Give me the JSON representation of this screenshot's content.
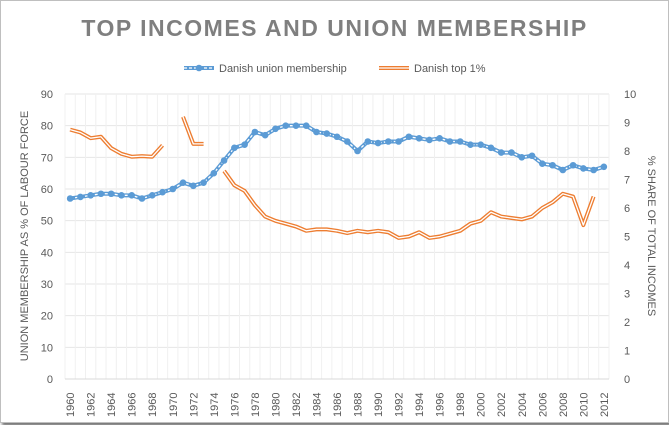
{
  "chart_data": {
    "type": "line",
    "title": "TOP INCOMES AND UNION MEMBERSHIP",
    "ylabel": "UNION MEMBERSHIP AS % OF LABOUR FORCE",
    "y2label": "% SHARE OF TOTAL INCOMES",
    "xlabel": "",
    "ylim": [
      0,
      90
    ],
    "yticks": [
      0,
      10,
      20,
      30,
      40,
      50,
      60,
      70,
      80,
      90
    ],
    "y2lim": [
      0,
      10
    ],
    "y2ticks": [
      0,
      1,
      2,
      3,
      4,
      5,
      6,
      7,
      8,
      9,
      10
    ],
    "grid": true,
    "legend": "top",
    "x": [
      1960,
      1961,
      1962,
      1963,
      1964,
      1965,
      1966,
      1967,
      1968,
      1969,
      1970,
      1971,
      1972,
      1973,
      1974,
      1975,
      1976,
      1977,
      1978,
      1979,
      1980,
      1981,
      1982,
      1983,
      1984,
      1985,
      1986,
      1987,
      1988,
      1989,
      1990,
      1991,
      1992,
      1993,
      1994,
      1995,
      1996,
      1997,
      1998,
      1999,
      2000,
      2001,
      2002,
      2003,
      2004,
      2005,
      2006,
      2007,
      2008,
      2009,
      2010,
      2011,
      2012
    ],
    "xticklabels": [
      "1960",
      "1962",
      "1964",
      "1966",
      "1968",
      "1970",
      "1972",
      "1974",
      "1976",
      "1978",
      "1980",
      "1982",
      "1984",
      "1986",
      "1988",
      "1990",
      "1992",
      "1994",
      "1996",
      "1998",
      "2000",
      "2002",
      "2004",
      "2006",
      "2008",
      "2010",
      "2012"
    ],
    "series": [
      {
        "name": "Danish union membership",
        "axis": "left",
        "color": "#5b9bd5",
        "values": [
          57,
          57.5,
          58,
          58.5,
          58.5,
          58,
          58,
          57,
          58,
          59,
          60,
          62,
          61,
          62,
          65,
          69,
          73,
          74,
          78,
          77,
          79,
          80,
          80,
          80,
          78,
          77.5,
          76.5,
          75,
          72,
          75,
          74.5,
          75,
          75,
          76.5,
          76,
          75.5,
          76,
          75,
          75,
          74,
          74,
          73,
          71.5,
          71.5,
          70,
          70.5,
          68,
          67.5,
          66,
          67.5,
          66.5,
          66,
          67
        ]
      },
      {
        "name": "Danish top 1%",
        "axis": "right",
        "color": "#ed7d31",
        "values": [
          8.75,
          8.65,
          8.45,
          8.5,
          8.1,
          7.9,
          7.8,
          7.82,
          7.8,
          8.2,
          null,
          9.2,
          8.25,
          8.25,
          null,
          7.3,
          6.8,
          6.6,
          6.1,
          5.7,
          5.55,
          5.45,
          5.35,
          5.2,
          5.25,
          5.25,
          5.2,
          5.12,
          5.2,
          5.15,
          5.2,
          5.15,
          4.95,
          5.0,
          5.15,
          4.95,
          5.0,
          5.1,
          5.2,
          5.45,
          5.55,
          5.85,
          5.7,
          5.65,
          5.6,
          5.7,
          6.0,
          6.2,
          6.5,
          6.4,
          5.4,
          6.4,
          null
        ]
      }
    ]
  }
}
